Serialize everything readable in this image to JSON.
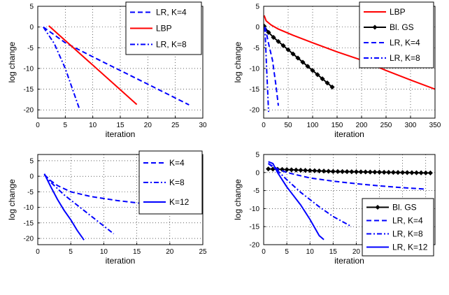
{
  "chart_data": [
    {
      "type": "line",
      "xlabel": "iteration",
      "ylabel": "log change",
      "xlim": [
        0,
        30
      ],
      "ylim": [
        -22,
        5
      ],
      "xticks": [
        0,
        5,
        10,
        15,
        20,
        25,
        30
      ],
      "yticks": [
        5,
        0,
        -5,
        -10,
        -15,
        -20
      ],
      "grid": true,
      "legend_position": "top-right",
      "series": [
        {
          "name": "LR, K=4",
          "color": "#0000ff",
          "style": "dashed",
          "x": [
            1,
            5,
            10,
            15,
            20,
            27.5
          ],
          "y": [
            0,
            -3.8,
            -7.2,
            -10.5,
            -13.8,
            -18.8
          ]
        },
        {
          "name": "LBP",
          "color": "#ff0000",
          "style": "solid",
          "x": [
            2,
            18
          ],
          "y": [
            0.3,
            -18.7
          ]
        },
        {
          "name": "LR, K=8",
          "color": "#0000ff",
          "style": "dashdot",
          "x": [
            1,
            3,
            5,
            7.5
          ],
          "y": [
            0,
            -4,
            -10,
            -19.5
          ]
        }
      ]
    },
    {
      "type": "line",
      "xlabel": "iteration",
      "ylabel": "log change",
      "xlim": [
        0,
        350
      ],
      "ylim": [
        -22,
        5
      ],
      "xticks": [
        0,
        50,
        100,
        150,
        200,
        250,
        300,
        350
      ],
      "yticks": [
        5,
        0,
        -5,
        -10,
        -15,
        -20
      ],
      "grid": true,
      "legend_position": "top-right",
      "series": [
        {
          "name": "LBP",
          "color": "#ff0000",
          "style": "solid",
          "x": [
            1,
            5,
            15,
            30,
            60,
            100,
            150,
            200,
            250,
            300,
            350
          ],
          "y": [
            2.8,
            1.5,
            0.5,
            -0.5,
            -2,
            -3.8,
            -6,
            -8,
            -10.5,
            -12.8,
            -15
          ]
        },
        {
          "name": "Bl. GS",
          "color": "#000000",
          "style": "solid",
          "marker": "diamond",
          "x": [
            1,
            10,
            20,
            30,
            40,
            50,
            60,
            70,
            80,
            90,
            100,
            110,
            120,
            130,
            140
          ],
          "y": [
            0.2,
            -1.3,
            -2.5,
            -3.5,
            -4.5,
            -5.5,
            -6.5,
            -7.5,
            -8.5,
            -9.5,
            -10.5,
            -11.5,
            -12.5,
            -13.5,
            -14.5
          ]
        },
        {
          "name": "LR, K=4",
          "color": "#0000ff",
          "style": "dashed",
          "x": [
            3,
            10,
            18,
            25,
            30
          ],
          "y": [
            0,
            -4,
            -8,
            -14,
            -19
          ]
        },
        {
          "name": "LR, K=8",
          "color": "#0000ff",
          "style": "dashdot",
          "x": [
            2,
            4,
            6,
            8,
            10
          ],
          "y": [
            0,
            -4,
            -10,
            -15,
            -20.5
          ]
        }
      ]
    },
    {
      "type": "line",
      "xlabel": "iteration",
      "ylabel": "log change",
      "xlim": [
        0,
        25
      ],
      "ylim": [
        -22,
        7
      ],
      "xticks": [
        0,
        5,
        10,
        15,
        20,
        25
      ],
      "yticks": [
        5,
        0,
        -5,
        -10,
        -15,
        -20
      ],
      "grid": true,
      "legend_position": "top-right",
      "series": [
        {
          "name": "K=4",
          "color": "#0000ff",
          "style": "dashed",
          "x": [
            1,
            2,
            3,
            5,
            8,
            12,
            16,
            20,
            25
          ],
          "y": [
            0.5,
            -1.5,
            -3,
            -5,
            -6.5,
            -7.8,
            -8.8,
            -9.6,
            -10.5
          ]
        },
        {
          "name": "K=8",
          "color": "#0000ff",
          "style": "dashdot",
          "x": [
            1,
            2,
            4,
            7,
            10,
            11.5
          ],
          "y": [
            0.5,
            -2,
            -6,
            -11,
            -16,
            -18.5
          ]
        },
        {
          "name": "K=12",
          "color": "#0000ff",
          "style": "solid",
          "x": [
            1,
            2,
            3,
            4,
            5,
            6,
            7
          ],
          "y": [
            0.8,
            -3.5,
            -7.5,
            -11,
            -14,
            -17.5,
            -20.5
          ]
        }
      ]
    },
    {
      "type": "line",
      "xlabel": "iteration",
      "ylabel": "log change",
      "xlim": [
        0,
        37
      ],
      "ylim": [
        -20,
        5
      ],
      "xticks": [
        0,
        5,
        10,
        15,
        20,
        25,
        30,
        35
      ],
      "yticks": [
        5,
        0,
        -5,
        -10,
        -15,
        -20
      ],
      "grid": true,
      "legend_position": "bottom-right",
      "series": [
        {
          "name": "Bl. GS",
          "color": "#000000",
          "style": "solid",
          "marker": "diamond",
          "x": [
            1,
            2,
            3,
            4,
            5,
            6,
            7,
            8,
            9,
            10,
            11,
            12,
            13,
            14,
            15,
            16,
            17,
            18,
            19,
            20,
            21,
            22,
            23,
            24,
            25,
            26,
            27,
            28,
            29,
            30,
            31,
            32,
            33,
            34,
            35,
            36
          ],
          "y": [
            1.0,
            0.95,
            0.9,
            0.85,
            0.8,
            0.75,
            0.7,
            0.65,
            0.6,
            0.55,
            0.5,
            0.45,
            0.4,
            0.35,
            0.3,
            0.28,
            0.26,
            0.24,
            0.22,
            0.2,
            0.18,
            0.16,
            0.14,
            0.12,
            0.1,
            0.08,
            0.06,
            0.04,
            0.02,
            0.0,
            -0.02,
            -0.04,
            -0.06,
            -0.08,
            -0.1,
            -0.12
          ]
        },
        {
          "name": "LR, K=4",
          "color": "#0000ff",
          "style": "dashed",
          "x": [
            1,
            3,
            5,
            10,
            15,
            20,
            25,
            30,
            35
          ],
          "y": [
            2.5,
            1,
            0,
            -1.5,
            -2.4,
            -3.1,
            -3.7,
            -4.2,
            -4.6
          ]
        },
        {
          "name": "LR, K=8",
          "color": "#0000ff",
          "style": "dashdot",
          "x": [
            1,
            3,
            5,
            8,
            12,
            15,
            19
          ],
          "y": [
            2.5,
            0.5,
            -2,
            -5.5,
            -9.5,
            -12.2,
            -15
          ]
        },
        {
          "name": "LR, K=12",
          "color": "#0000ff",
          "style": "solid",
          "x": [
            1,
            2,
            3,
            5,
            8,
            10,
            12,
            13
          ],
          "y": [
            3,
            2.5,
            0,
            -4,
            -9,
            -13,
            -17.5,
            -18.6
          ]
        }
      ]
    }
  ]
}
